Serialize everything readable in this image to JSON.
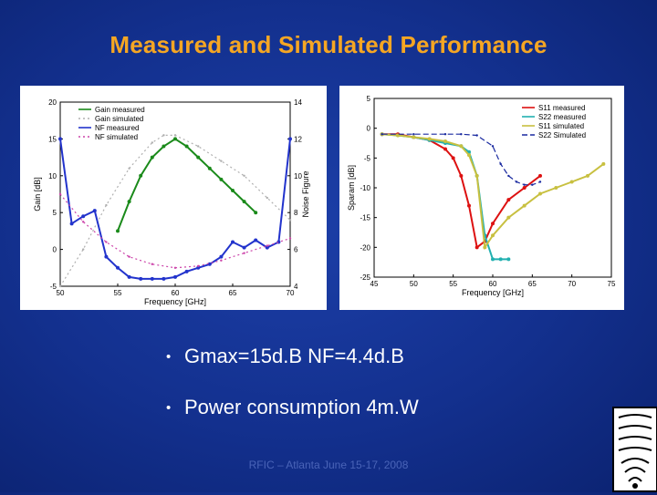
{
  "slide": {
    "title": "Measured and Simulated Performance",
    "bullets": [
      "Gmax=15d.B NF=4.4d.B",
      "Power consumption 4m.W"
    ],
    "footer": "RFIC – Atlanta June 15-17, 2008",
    "colors": {
      "title": "#f5a623",
      "background": "#13308e"
    }
  },
  "chart_data": [
    {
      "type": "line",
      "xlabel": "Frequency [GHz]",
      "ylabel": "Gain [dB]",
      "y2label": "Noise Figure",
      "xlim": [
        50,
        70
      ],
      "ylim": [
        -5,
        20
      ],
      "y2lim": [
        4,
        14
      ],
      "xticks": [
        "50",
        "55",
        "60",
        "65",
        "70"
      ],
      "yticks": [
        "-5",
        "0",
        "5",
        "10",
        "15",
        "20"
      ],
      "y2ticks": [
        "4",
        "6",
        "8",
        "10",
        "12",
        "14"
      ],
      "legend_position": "top-left",
      "series": [
        {
          "name": "Gain measured",
          "axis": "left",
          "color": "#1a8a1a",
          "style": "solid",
          "x": [
            55,
            56,
            57,
            58,
            59,
            60,
            61,
            62,
            63,
            64,
            65,
            66,
            67
          ],
          "y": [
            2.5,
            6.5,
            10,
            12.5,
            14,
            15,
            14,
            12.5,
            11,
            9.5,
            8,
            6.5,
            5
          ]
        },
        {
          "name": "Gain simulated",
          "axis": "left",
          "color": "#b0b0b0",
          "style": "dotted",
          "x": [
            50,
            52,
            54,
            56,
            58,
            59,
            60,
            62,
            64,
            66,
            68,
            70
          ],
          "y": [
            -5,
            0,
            6,
            11,
            14.5,
            15.5,
            15.5,
            14,
            12,
            10,
            7,
            4
          ]
        },
        {
          "name": "NF measured",
          "axis": "right",
          "color": "#2233cc",
          "style": "solid",
          "x": [
            50,
            51,
            52,
            53,
            54,
            55,
            56,
            57,
            58,
            59,
            60,
            61,
            62,
            63,
            64,
            65,
            66,
            67,
            68,
            69,
            70
          ],
          "y": [
            12,
            7.4,
            7.8,
            8.1,
            5.6,
            5,
            4.5,
            4.4,
            4.4,
            4.4,
            4.5,
            4.8,
            5,
            5.2,
            5.6,
            6.4,
            6.1,
            6.5,
            6.1,
            6.4,
            12
          ]
        },
        {
          "name": "NF simulated",
          "axis": "right",
          "color": "#cc44aa",
          "style": "dotted",
          "x": [
            50,
            52,
            54,
            56,
            58,
            60,
            62,
            64,
            66,
            68,
            70
          ],
          "y": [
            9,
            7.5,
            6.4,
            5.6,
            5.2,
            5.0,
            5.1,
            5.4,
            5.8,
            6.2,
            6.6
          ]
        }
      ]
    },
    {
      "type": "line",
      "xlabel": "Frequency [GHz]",
      "ylabel": "Sparam [dB]",
      "xlim": [
        45,
        75
      ],
      "ylim": [
        -25,
        5
      ],
      "xticks": [
        "45",
        "50",
        "55",
        "60",
        "65",
        "70",
        "75"
      ],
      "yticks": [
        "-25",
        "-20",
        "-15",
        "-10",
        "-5",
        "0",
        "5"
      ],
      "legend_position": "top-right",
      "series": [
        {
          "name": "S11 measured",
          "color": "#dd1111",
          "style": "solid",
          "x": [
            46,
            48,
            50,
            52,
            54,
            55,
            56,
            57,
            58,
            59,
            60,
            62,
            64,
            66
          ],
          "y": [
            -1,
            -1,
            -1.5,
            -2,
            -3.5,
            -5,
            -8,
            -13,
            -20,
            -19,
            -16,
            -12,
            -10,
            -8
          ]
        },
        {
          "name": "S22 measured",
          "color": "#22b0b0",
          "style": "solid",
          "x": [
            46,
            48,
            50,
            52,
            54,
            56,
            57,
            58,
            59,
            60,
            61,
            62
          ],
          "y": [
            -1,
            -1.2,
            -1.5,
            -2,
            -2.5,
            -3,
            -4,
            -8,
            -18,
            -22,
            -22,
            -22
          ]
        },
        {
          "name": "S11 simulated",
          "color": "#c8c040",
          "style": "solid",
          "x": [
            46,
            48,
            50,
            52,
            54,
            56,
            57,
            58,
            59,
            60,
            62,
            64,
            66,
            68,
            70,
            72,
            74
          ],
          "y": [
            -1,
            -1.2,
            -1.5,
            -1.8,
            -2.2,
            -3,
            -4.5,
            -8,
            -20,
            -18,
            -15,
            -13,
            -11,
            -10,
            -9,
            -8,
            -6
          ]
        },
        {
          "name": "S22 Simulated",
          "color": "#1a2aa0",
          "style": "dashed",
          "x": [
            46,
            50,
            54,
            56,
            58,
            60,
            61,
            62,
            63,
            64,
            65,
            66
          ],
          "y": [
            -1,
            -1,
            -1,
            -1,
            -1.2,
            -3,
            -6,
            -8,
            -9,
            -9.5,
            -9.5,
            -9
          ]
        }
      ]
    }
  ]
}
